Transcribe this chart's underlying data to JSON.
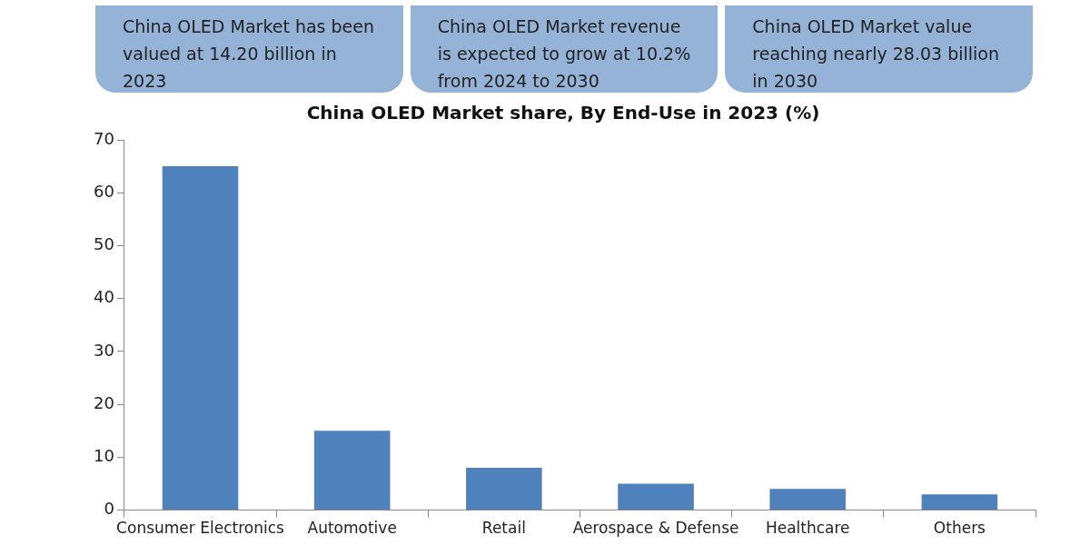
{
  "chart_data": {
    "type": "bar",
    "title": "China OLED Market share, By End-Use in 2023 (%)",
    "categories": [
      "Consumer Electronics",
      "Automotive",
      "Retail",
      "Aerospace & Defense",
      "Healthcare",
      "Others"
    ],
    "values": [
      65,
      15,
      8,
      5,
      4,
      3
    ],
    "color": "#4f81bd",
    "ylim": [
      0,
      70
    ],
    "yticks": [
      0,
      10,
      20,
      30,
      40,
      50,
      60,
      70
    ],
    "grid": false,
    "legend": false,
    "annotations": [
      "China OLED Market has been valued at 14.20 billion in 2023",
      "China OLED Market revenue is expected to grow at 10.2% from 2024 to 2030",
      "China OLED Market value reaching nearly 28.03 billion in 2030"
    ]
  }
}
